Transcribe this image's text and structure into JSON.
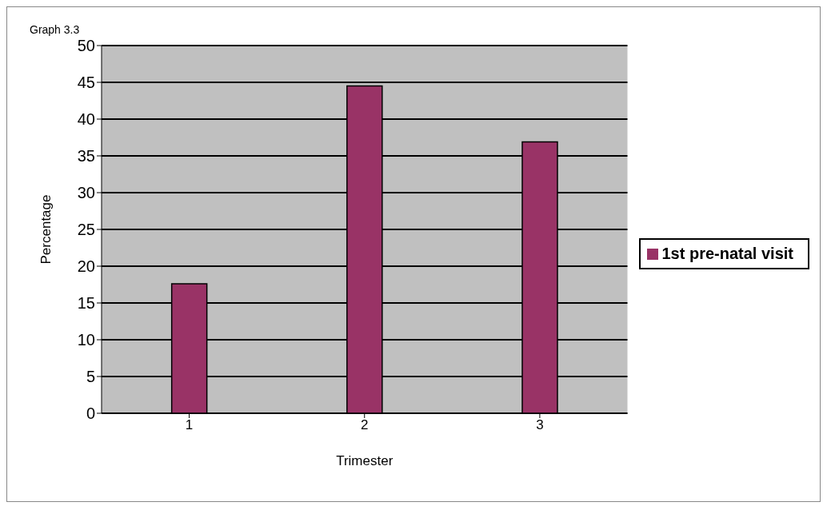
{
  "chart_data": {
    "type": "bar",
    "title": "Graph 3.3",
    "xlabel": "Trimester",
    "ylabel": "Percentage",
    "categories": [
      "1",
      "2",
      "3"
    ],
    "series": [
      {
        "name": "1st pre-natal visit",
        "color": "#993366",
        "values": [
          17.6,
          44.5,
          36.9
        ]
      }
    ],
    "ylim": [
      0,
      50
    ],
    "yticks": [
      0,
      5,
      10,
      15,
      20,
      25,
      30,
      35,
      40,
      45,
      50
    ],
    "grid": "y",
    "legend": "right"
  }
}
